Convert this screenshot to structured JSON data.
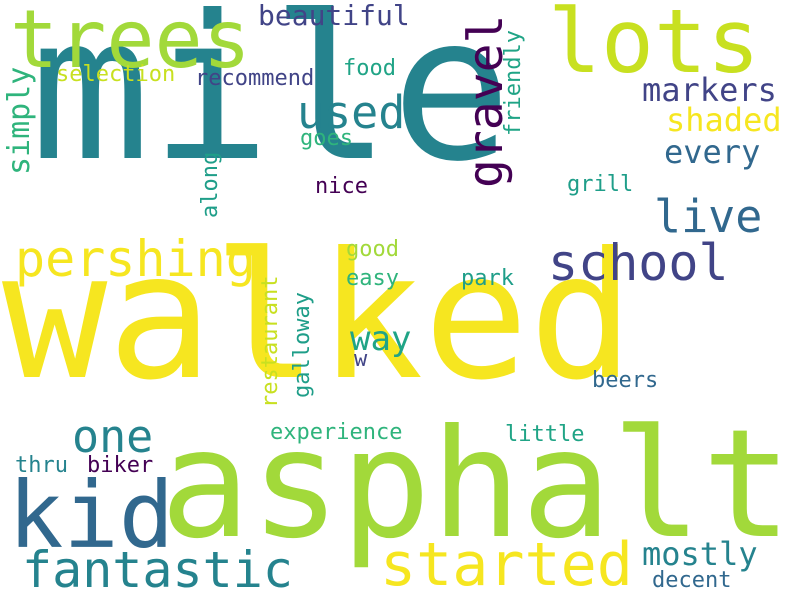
{
  "colors": {
    "background": "#ffffff",
    "yellow": "#f6e620",
    "lime": "#a2d93a",
    "yellowgreen": "#c8e020",
    "teal": "#25838e",
    "blue": "#31688e",
    "indigo": "#414487",
    "purple": "#440154",
    "green": "#20a486",
    "seagreen": "#2fb47c",
    "darkgreen": "#1f9e89"
  },
  "words": {
    "walked": "walked",
    "mile": "mile",
    "asphalt": "asphalt",
    "trees": "trees",
    "lots": "lots",
    "kid": "kid",
    "fantastic": "fantastic",
    "started": "started",
    "pershing": "pershing",
    "school": "school",
    "used": "used",
    "one": "one",
    "gravel": "gravel",
    "live": "live",
    "beautiful": "beautiful",
    "markers": "markers",
    "shaded": "shaded",
    "every": "every",
    "mostly": "mostly",
    "way": "way",
    "simply": "simply",
    "selection": "selection",
    "recommend": "recommend",
    "food": "food",
    "friendly": "friendly",
    "goes": "goes",
    "along": "along",
    "nice": "nice",
    "grill": "grill",
    "good": "good",
    "easy": "easy",
    "park": "park",
    "restaurant": "restaurant",
    "galloway": "galloway",
    "w": "w",
    "beers": "beers",
    "experience": "experience",
    "little": "little",
    "thru": "thru",
    "biker": "biker",
    "decent": "decent"
  }
}
